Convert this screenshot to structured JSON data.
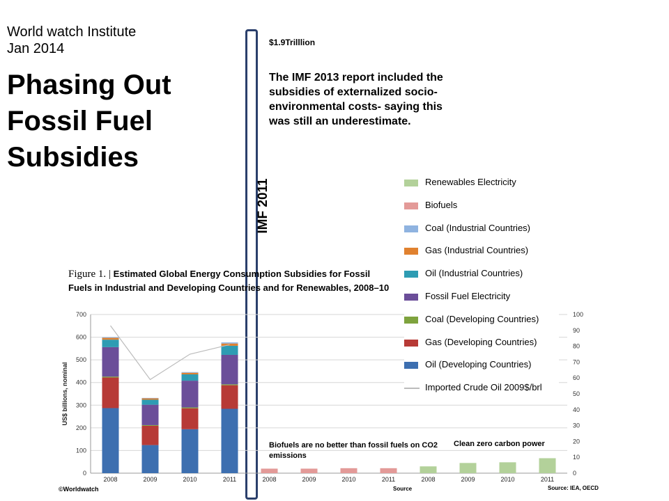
{
  "slide": {
    "source_line1": "World watch Institute",
    "source_line2": "Jan 2014",
    "title_line1": "Phasing Out",
    "title_line2": "Fossil Fuel",
    "title_line3": "Subsidies",
    "amount": "$1.9Trilllion",
    "note": "The IMF 2013 report included the subsidies  of externalized socio-environmental costs- saying this was still an underestimate.",
    "imf_label": "IMF 2011",
    "biofuels_note": "Biofuels  are no better than fossil fuels on CO2 emissions",
    "clean_note": "Clean zero carbon power",
    "bracket_color": "#2a3f6b"
  },
  "chart_data": {
    "type": "bar",
    "figure_label": "Figure 1. |",
    "title": "Estimated Global Energy Consumption Subsidies for Fossil Fuels in Industrial and Developing Countries and for Renewables, 2008–10",
    "ylabel": "US$ billions, nominal",
    "ylim": [
      0,
      700
    ],
    "yticks": [
      0,
      100,
      200,
      300,
      400,
      500,
      600,
      700
    ],
    "y2lim": [
      0,
      100
    ],
    "y2ticks": [
      0,
      10,
      20,
      30,
      40,
      50,
      60,
      70,
      80,
      90,
      100
    ],
    "categories": [
      "2008",
      "2009",
      "2010",
      "2011"
    ],
    "series": [
      {
        "name": "Oil (Developing Countries)",
        "color": "#3d6fb0",
        "values": [
          287,
          124,
          194,
          284
        ]
      },
      {
        "name": "Gas (Developing Countries)",
        "color": "#b73a36",
        "values": [
          135,
          85,
          92,
          104
        ]
      },
      {
        "name": "Coal (Developing Countries)",
        "color": "#7ea33e",
        "values": [
          4,
          3,
          4,
          4
        ]
      },
      {
        "name": "Fossil Fuel Electricity",
        "color": "#6b4e99",
        "values": [
          130,
          90,
          118,
          130
        ]
      },
      {
        "name": "Oil (Industrial Countries)",
        "color": "#2e9cb3",
        "values": [
          33,
          22,
          28,
          40
        ]
      },
      {
        "name": "Gas (Industrial Countries)",
        "color": "#e0812f",
        "values": [
          8,
          6,
          7,
          10
        ]
      },
      {
        "name": "Coal (Industrial Countries)",
        "color": "#8fb3e0",
        "values": [
          3,
          2,
          3,
          5
        ]
      }
    ],
    "biofuels": {
      "name": "Biofuels",
      "color": "#e39a98",
      "categories": [
        "2008",
        "2009",
        "2010",
        "2011"
      ],
      "values": [
        20,
        20,
        22,
        22
      ]
    },
    "renewables": {
      "name": "Renewables Electricity",
      "color": "#b3d19a",
      "categories": [
        "2008",
        "2009",
        "2010",
        "2011"
      ],
      "values": [
        30,
        45,
        48,
        66
      ]
    },
    "oil_price": {
      "name": "Imported Crude Oil 2009$/brl",
      "color": "#bbbbbb",
      "axis": "right",
      "values": [
        93,
        59,
        75,
        81
      ]
    },
    "legend": [
      {
        "label": "Renewables Electricity",
        "color": "#b3d19a",
        "kind": "box"
      },
      {
        "label": "Biofuels",
        "color": "#e39a98",
        "kind": "box"
      },
      {
        "label": "Coal (Industrial Countries)",
        "color": "#8fb3e0",
        "kind": "box"
      },
      {
        "label": "Gas (Industrial Countries)",
        "color": "#e0812f",
        "kind": "box"
      },
      {
        "label": "Oil (Industrial Countries)",
        "color": "#2e9cb3",
        "kind": "box"
      },
      {
        "label": "Fossil Fuel Electricity",
        "color": "#6b4e99",
        "kind": "box"
      },
      {
        "label": "Coal (Developing Countries)",
        "color": "#7ea33e",
        "kind": "box"
      },
      {
        "label": "Gas (Developing Countries)",
        "color": "#b73a36",
        "kind": "box"
      },
      {
        "label": "Oil (Developing Countries)",
        "color": "#3d6fb0",
        "kind": "box"
      },
      {
        "label": "Imported Crude Oil 2009$/brl",
        "color": "#bbbbbb",
        "kind": "line"
      }
    ],
    "footer_left": "©Worldwatch",
    "footer_mid": "Source",
    "footer_right": "Source: IEA, OECD"
  }
}
